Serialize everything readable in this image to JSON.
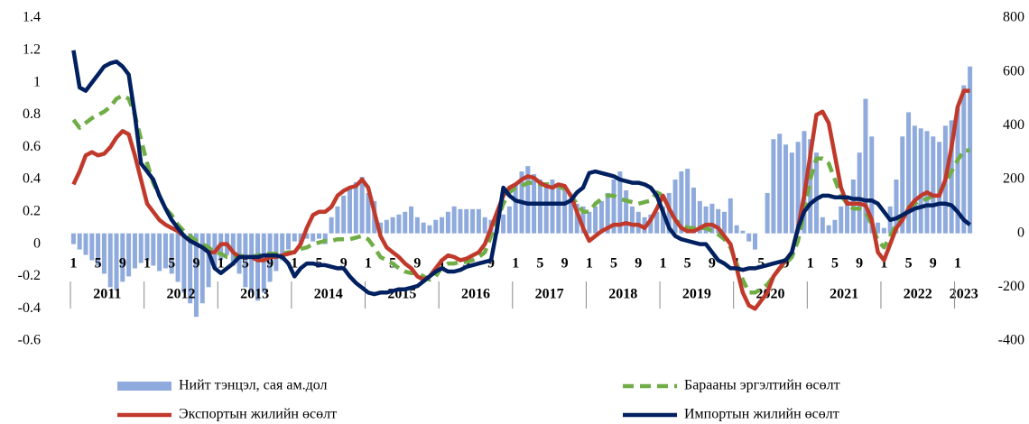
{
  "chart_data": {
    "type": "combo",
    "categories": [
      1,
      null,
      null,
      null,
      5,
      null,
      null,
      null,
      9,
      null,
      null,
      null,
      1,
      null,
      null,
      null,
      5,
      null,
      null,
      null,
      9,
      null,
      null,
      null,
      1,
      null,
      null,
      null,
      5,
      null,
      null,
      null,
      9,
      null,
      null,
      null,
      1,
      null,
      null,
      null,
      5,
      null,
      null,
      null,
      9,
      null,
      null,
      null,
      1,
      null,
      null,
      null,
      5,
      null,
      null,
      null,
      9,
      null,
      null,
      null,
      1,
      null,
      null,
      null,
      5,
      null,
      null,
      null,
      9,
      null,
      null,
      null,
      1,
      null,
      null,
      null,
      5,
      null,
      null,
      null,
      9,
      null,
      null,
      null,
      1,
      null,
      null,
      null,
      5,
      null,
      null,
      null,
      9,
      null,
      null,
      null,
      1,
      null,
      null,
      null,
      5,
      null,
      null,
      null,
      9,
      null,
      null,
      null,
      1,
      null,
      null,
      null,
      5,
      null,
      null,
      null,
      9,
      null,
      null,
      null,
      1,
      null,
      null,
      null,
      5,
      null,
      null,
      null,
      9,
      null,
      null,
      null,
      1,
      null,
      null,
      null,
      5,
      null,
      null,
      null,
      9,
      null,
      null,
      null,
      1,
      null,
      null
    ],
    "years": [
      "2011",
      "2012",
      "2013",
      "2014",
      "2015",
      "2016",
      "2017",
      "2018",
      "2019",
      "2020",
      "2021",
      "2022",
      "2023"
    ],
    "ylim": [
      -0.6,
      1.4
    ],
    "yticks": [
      -0.6,
      -0.4,
      -0.2,
      0,
      0.2,
      0.4,
      0.6,
      0.8,
      1,
      1.2,
      1.4
    ],
    "y2lim": [
      -400,
      800
    ],
    "y2ticks": [
      -400,
      -200,
      0,
      200,
      400,
      600,
      800
    ],
    "series": [
      {
        "name": "Нийт тэнцэл, сая ам.дол",
        "type": "bar",
        "axis": "y2",
        "color": "#8faadc",
        "values": [
          -40,
          -60,
          -80,
          -100,
          -120,
          -150,
          -200,
          -210,
          -180,
          -160,
          -130,
          -110,
          -100,
          -120,
          -140,
          -130,
          -150,
          -180,
          -220,
          -260,
          -310,
          -260,
          -200,
          -130,
          -100,
          -80,
          -120,
          -150,
          -200,
          -220,
          -250,
          -220,
          -180,
          -140,
          -100,
          -60,
          -30,
          -40,
          -20,
          -30,
          -20,
          -40,
          60,
          100,
          140,
          170,
          190,
          210,
          150,
          120,
          40,
          50,
          60,
          70,
          80,
          100,
          60,
          40,
          30,
          50,
          60,
          80,
          100,
          90,
          90,
          90,
          90,
          60,
          50,
          50,
          70,
          100,
          180,
          230,
          250,
          220,
          200,
          190,
          200,
          180,
          160,
          130,
          110,
          100,
          80,
          100,
          120,
          150,
          200,
          230,
          160,
          100,
          80,
          60,
          70,
          80,
          100,
          150,
          200,
          230,
          240,
          170,
          120,
          100,
          110,
          90,
          80,
          130,
          30,
          10,
          -30,
          -60,
          0,
          150,
          350,
          370,
          330,
          300,
          340,
          380,
          350,
          300,
          60,
          30,
          50,
          100,
          120,
          200,
          300,
          500,
          360,
          40,
          20,
          100,
          200,
          360,
          450,
          400,
          390,
          380,
          360,
          340,
          400,
          420,
          470,
          550,
          620
        ]
      },
      {
        "name": "Барааны эргэлтийн өсөлт",
        "type": "line",
        "dash": true,
        "color": "#70ad47",
        "values": [
          0.77,
          0.72,
          0.75,
          0.78,
          0.8,
          0.82,
          0.85,
          0.9,
          0.92,
          0.9,
          0.8,
          0.65,
          0.5,
          0.38,
          0.3,
          0.22,
          0.18,
          0.12,
          0.08,
          0.05,
          0.02,
          0,
          -0.02,
          -0.05,
          -0.06,
          -0.08,
          -0.08,
          -0.07,
          -0.08,
          -0.08,
          -0.07,
          -0.06,
          -0.06,
          -0.06,
          -0.06,
          -0.05,
          -0.05,
          -0.03,
          -0.02,
          0,
          0.01,
          0.02,
          0.02,
          0.03,
          0.03,
          0.03,
          0.04,
          0.05,
          0.03,
          -0.02,
          -0.08,
          -0.1,
          -0.12,
          -0.15,
          -0.17,
          -0.18,
          -0.18,
          -0.2,
          -0.22,
          -0.2,
          -0.14,
          -0.12,
          -0.12,
          -0.11,
          -0.11,
          -0.1,
          -0.08,
          -0.05,
          0.05,
          0.15,
          0.25,
          0.32,
          0.35,
          0.36,
          0.38,
          0.38,
          0.37,
          0.37,
          0.37,
          0.36,
          0.34,
          0.3,
          0.25,
          0.2,
          0.2,
          0.25,
          0.28,
          0.3,
          0.3,
          0.28,
          0.27,
          0.26,
          0.25,
          0.26,
          0.27,
          0.32,
          0.3,
          0.22,
          0.15,
          0.12,
          0.1,
          0.1,
          0.1,
          0.1,
          0.08,
          0.06,
          0.03,
          -0.02,
          -0.12,
          -0.22,
          -0.3,
          -0.3,
          -0.28,
          -0.25,
          -0.2,
          -0.15,
          -0.12,
          -0.08,
          0.02,
          0.2,
          0.4,
          0.53,
          0.53,
          0.5,
          0.4,
          0.3,
          0.25,
          0.22,
          0.22,
          0.2,
          0.12,
          0.02,
          -0.02,
          0.05,
          0.12,
          0.18,
          0.23,
          0.25,
          0.27,
          0.28,
          0.3,
          0.32,
          0.38,
          0.45,
          0.52,
          0.58,
          0.58
        ]
      },
      {
        "name": "Экспортын жилийн өсөлт",
        "type": "line",
        "color": "#c0392b",
        "values": [
          0.37,
          0.45,
          0.55,
          0.57,
          0.55,
          0.56,
          0.6,
          0.66,
          0.7,
          0.68,
          0.55,
          0.4,
          0.25,
          0.2,
          0.15,
          0.12,
          0.1,
          0.08,
          0.05,
          0.02,
          0,
          -0.02,
          -0.05,
          -0.05,
          0,
          0,
          -0.05,
          -0.08,
          -0.08,
          -0.08,
          -0.1,
          -0.1,
          -0.08,
          -0.08,
          -0.07,
          -0.06,
          -0.05,
          0,
          0.1,
          0.18,
          0.2,
          0.2,
          0.23,
          0.3,
          0.33,
          0.35,
          0.36,
          0.4,
          0.35,
          0.2,
          0.05,
          -0.02,
          -0.05,
          -0.08,
          -0.12,
          -0.15,
          -0.2,
          -0.22,
          -0.2,
          -0.15,
          -0.1,
          -0.07,
          -0.08,
          -0.1,
          -0.09,
          -0.07,
          -0.05,
          0,
          0.1,
          0.2,
          0.3,
          0.35,
          0.37,
          0.4,
          0.42,
          0.41,
          0.38,
          0.36,
          0.35,
          0.37,
          0.36,
          0.3,
          0.2,
          0.1,
          0.02,
          0.05,
          0.08,
          0.1,
          0.12,
          0.12,
          0.13,
          0.12,
          0.12,
          0.1,
          0.15,
          0.22,
          0.3,
          0.22,
          0.15,
          0.1,
          0.08,
          0.08,
          0.1,
          0.12,
          0.12,
          0.1,
          0.05,
          0,
          -0.15,
          -0.3,
          -0.38,
          -0.4,
          -0.35,
          -0.3,
          -0.2,
          -0.15,
          -0.1,
          -0.05,
          0.1,
          0.3,
          0.55,
          0.8,
          0.82,
          0.75,
          0.55,
          0.35,
          0.25,
          0.25,
          0.25,
          0.24,
          0.15,
          -0.05,
          -0.1,
          0,
          0.1,
          0.15,
          0.22,
          0.27,
          0.3,
          0.32,
          0.3,
          0.3,
          0.4,
          0.6,
          0.85,
          0.95,
          0.95
        ]
      },
      {
        "name": "Импортын жилийн өсөлт",
        "type": "line",
        "color": "#002060",
        "values": [
          1.2,
          0.97,
          0.95,
          1,
          1.05,
          1.1,
          1.12,
          1.13,
          1.1,
          1.05,
          0.8,
          0.5,
          0.45,
          0.4,
          0.3,
          0.22,
          0.15,
          0.1,
          0.05,
          0.02,
          0,
          -0.02,
          -0.05,
          -0.15,
          -0.18,
          -0.15,
          -0.12,
          -0.08,
          -0.08,
          -0.08,
          -0.08,
          -0.07,
          -0.07,
          -0.07,
          -0.08,
          -0.12,
          -0.2,
          -0.15,
          -0.12,
          -0.12,
          -0.13,
          -0.13,
          -0.14,
          -0.15,
          -0.15,
          -0.2,
          -0.24,
          -0.27,
          -0.3,
          -0.31,
          -0.3,
          -0.3,
          -0.29,
          -0.28,
          -0.28,
          -0.27,
          -0.26,
          -0.23,
          -0.2,
          -0.17,
          -0.15,
          -0.17,
          -0.17,
          -0.16,
          -0.14,
          -0.13,
          -0.12,
          -0.11,
          -0.1,
          0.1,
          0.35,
          0.3,
          0.27,
          0.26,
          0.25,
          0.25,
          0.25,
          0.25,
          0.25,
          0.25,
          0.25,
          0.27,
          0.32,
          0.35,
          0.44,
          0.45,
          0.44,
          0.43,
          0.42,
          0.4,
          0.39,
          0.38,
          0.38,
          0.37,
          0.35,
          0.3,
          0.2,
          0.1,
          0.05,
          0.03,
          0.02,
          0.01,
          0,
          0,
          -0.05,
          -0.1,
          -0.12,
          -0.15,
          -0.15,
          -0.16,
          -0.15,
          -0.15,
          -0.14,
          -0.13,
          -0.12,
          -0.11,
          -0.1,
          -0.05,
          0.1,
          0.2,
          0.25,
          0.28,
          0.3,
          0.3,
          0.29,
          0.29,
          0.29,
          0.28,
          0.28,
          0.27,
          0.27,
          0.25,
          0.2,
          0.15,
          0.16,
          0.18,
          0.2,
          0.22,
          0.23,
          0.24,
          0.24,
          0.25,
          0.25,
          0.24,
          0.2,
          0.15,
          0.12
        ]
      }
    ]
  }
}
